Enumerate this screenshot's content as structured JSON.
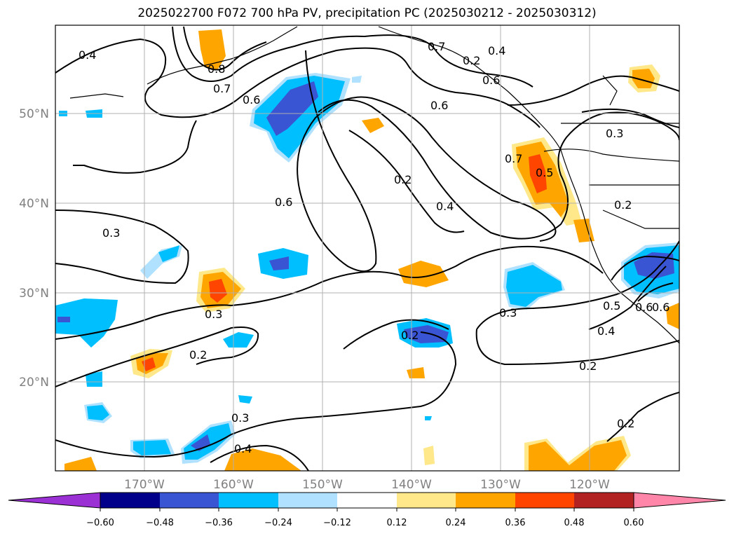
{
  "title": "2025022700 F072 700 hPa PV, precipitation PC (2025030212 - 2025030312)",
  "map": {
    "lon_labels": [
      "170°W",
      "160°W",
      "150°W",
      "140°W",
      "130°W",
      "120°W"
    ],
    "lat_labels": [
      "50°N",
      "40°N",
      "30°N",
      "20°N"
    ],
    "contour_labels": [
      "0.4",
      "0.8",
      "0.7",
      "0.6",
      "0.7",
      "0.4",
      "0.6",
      "0.6",
      "0.3",
      "0.6",
      "0.2",
      "0.4",
      "0.7",
      "0.5",
      "0.3",
      "0.2",
      "0.3",
      "0.2",
      "0.2",
      "0.3",
      "0.5",
      "0.6",
      "0.4",
      "0.2",
      "0.3",
      "0.4",
      "0.2",
      "0.2",
      "0.6"
    ],
    "colorbar": {
      "ticks": [
        "−0.60",
        "−0.48",
        "−0.36",
        "−0.24",
        "−0.12",
        "0.12",
        "0.24",
        "0.36",
        "0.48",
        "0.60"
      ],
      "colors": [
        "#9b30d4",
        "#00008b",
        "#3a55d4",
        "#00bfff",
        "#b0e2ff",
        "#ffffff",
        "#ffe88a",
        "#ffa500",
        "#ff4500",
        "#b22222",
        "#ff86a8"
      ]
    }
  }
}
